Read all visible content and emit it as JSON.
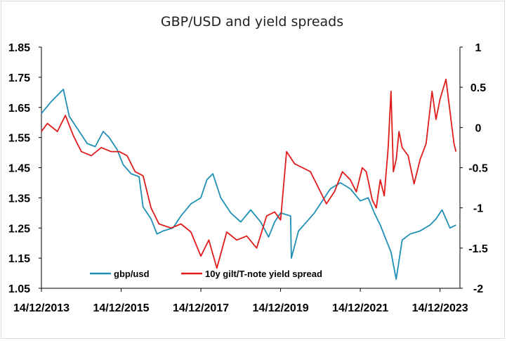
{
  "chart_data": {
    "type": "line",
    "title": "GBP/USD and yield spreads",
    "x_tick_labels": [
      "14/12/2013",
      "14/12/2015",
      "14/12/2017",
      "14/12/2019",
      "14/12/2021",
      "14/12/2023"
    ],
    "x_ticks": [
      2013.95,
      2015.95,
      2017.95,
      2019.95,
      2021.95,
      2023.95
    ],
    "xlim": [
      2013.95,
      2024.45
    ],
    "y_left": {
      "ylim": [
        1.05,
        1.85
      ],
      "ticks": [
        "1.05",
        "1.15",
        "1.25",
        "1.35",
        "1.45",
        "1.55",
        "1.65",
        "1.75",
        "1.85"
      ]
    },
    "y_right": {
      "ylim": [
        -2,
        1
      ],
      "ticks": [
        "1",
        "0.5",
        "0",
        "-0.5",
        "-1",
        "-1.5",
        "-2"
      ]
    },
    "legend_position": "bottom-inside",
    "series": [
      {
        "name": "gbp/usd",
        "axis": "left",
        "color": "#1f8fb5",
        "x": [
          2013.95,
          2014.2,
          2014.5,
          2014.65,
          2014.85,
          2015.1,
          2015.3,
          2015.5,
          2015.65,
          2015.85,
          2016.0,
          2016.2,
          2016.4,
          2016.5,
          2016.7,
          2016.85,
          2017.0,
          2017.25,
          2017.45,
          2017.7,
          2017.95,
          2018.1,
          2018.25,
          2018.45,
          2018.7,
          2018.95,
          2019.2,
          2019.45,
          2019.65,
          2019.8,
          2019.95,
          2020.2,
          2020.22,
          2020.4,
          2020.6,
          2020.8,
          2020.95,
          2021.2,
          2021.45,
          2021.7,
          2021.95,
          2022.15,
          2022.3,
          2022.45,
          2022.6,
          2022.72,
          2022.85,
          2023.0,
          2023.2,
          2023.45,
          2023.7,
          2023.85,
          2024.0,
          2024.2,
          2024.35
        ],
        "values": [
          1.63,
          1.67,
          1.71,
          1.62,
          1.58,
          1.53,
          1.52,
          1.57,
          1.55,
          1.51,
          1.46,
          1.43,
          1.42,
          1.32,
          1.28,
          1.23,
          1.24,
          1.25,
          1.29,
          1.33,
          1.35,
          1.41,
          1.43,
          1.35,
          1.3,
          1.27,
          1.31,
          1.27,
          1.22,
          1.27,
          1.3,
          1.29,
          1.15,
          1.24,
          1.27,
          1.3,
          1.33,
          1.38,
          1.4,
          1.38,
          1.34,
          1.35,
          1.3,
          1.26,
          1.21,
          1.17,
          1.08,
          1.21,
          1.23,
          1.24,
          1.26,
          1.28,
          1.31,
          1.25,
          1.26
        ]
      },
      {
        "name": "10y gilt/T-note yield spread",
        "axis": "right",
        "color": "#e01b1b",
        "x": [
          2013.95,
          2014.1,
          2014.35,
          2014.55,
          2014.75,
          2014.95,
          2015.2,
          2015.45,
          2015.7,
          2015.9,
          2016.1,
          2016.3,
          2016.5,
          2016.7,
          2016.9,
          2017.2,
          2017.45,
          2017.7,
          2017.95,
          2018.15,
          2018.35,
          2018.6,
          2018.85,
          2019.1,
          2019.35,
          2019.6,
          2019.8,
          2019.95,
          2020.1,
          2020.3,
          2020.5,
          2020.7,
          2020.9,
          2021.1,
          2021.3,
          2021.5,
          2021.7,
          2021.85,
          2022.0,
          2022.1,
          2022.25,
          2022.35,
          2022.45,
          2022.55,
          2022.65,
          2022.72,
          2022.78,
          2022.85,
          2022.92,
          2023.0,
          2023.15,
          2023.3,
          2023.45,
          2023.6,
          2023.75,
          2023.85,
          2023.95,
          2024.1,
          2024.2,
          2024.3,
          2024.35
        ],
        "values": [
          -0.05,
          0.05,
          -0.05,
          0.15,
          -0.1,
          -0.3,
          -0.35,
          -0.25,
          -0.3,
          -0.3,
          -0.35,
          -0.55,
          -0.6,
          -1.0,
          -1.2,
          -1.25,
          -1.2,
          -1.3,
          -1.6,
          -1.4,
          -1.75,
          -1.3,
          -1.4,
          -1.35,
          -1.5,
          -1.1,
          -1.05,
          -1.15,
          -0.3,
          -0.45,
          -0.5,
          -0.55,
          -0.75,
          -0.95,
          -0.8,
          -0.55,
          -0.65,
          -0.8,
          -0.5,
          -0.55,
          -0.9,
          -1.0,
          -0.65,
          -0.85,
          -0.25,
          0.45,
          -0.55,
          -0.4,
          -0.05,
          -0.25,
          -0.35,
          -0.7,
          -0.4,
          -0.2,
          0.45,
          0.1,
          0.35,
          0.6,
          0.2,
          -0.2,
          -0.3
        ]
      }
    ]
  }
}
